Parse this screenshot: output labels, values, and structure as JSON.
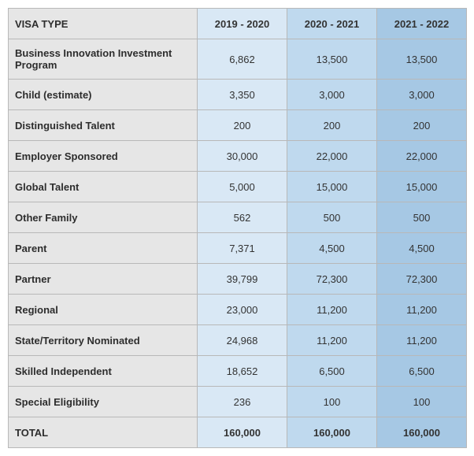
{
  "table": {
    "type": "table",
    "header_label": "VISA TYPE",
    "columns": [
      "2019 - 2020",
      "2020 - 2021",
      "2021 - 2022"
    ],
    "column_bg_colors": [
      "#d9e8f5",
      "#bfd9ee",
      "#a6c8e4"
    ],
    "first_col_bg": "#e6e6e6",
    "border_color": "#b8b8b8",
    "font_family": "Segoe UI",
    "body_fontsize": 13,
    "rows": [
      {
        "label": "Business Innovation Investment Program",
        "values": [
          "6,862",
          "13,500",
          "13,500"
        ]
      },
      {
        "label": "Child (estimate)",
        "values": [
          "3,350",
          "3,000",
          "3,000"
        ]
      },
      {
        "label": "Distinguished Talent",
        "values": [
          "200",
          "200",
          "200"
        ]
      },
      {
        "label": "Employer Sponsored",
        "values": [
          "30,000",
          "22,000",
          "22,000"
        ]
      },
      {
        "label": "Global Talent",
        "values": [
          "5,000",
          "15,000",
          "15,000"
        ]
      },
      {
        "label": "Other Family",
        "values": [
          "562",
          "500",
          "500"
        ]
      },
      {
        "label": "Parent",
        "values": [
          "7,371",
          "4,500",
          "4,500"
        ]
      },
      {
        "label": "Partner",
        "values": [
          "39,799",
          "72,300",
          "72,300"
        ]
      },
      {
        "label": "Regional",
        "values": [
          "23,000",
          "11,200",
          "11,200"
        ]
      },
      {
        "label": "State/Territory Nominated",
        "values": [
          "24,968",
          "11,200",
          "11,200"
        ]
      },
      {
        "label": "Skilled Independent",
        "values": [
          "18,652",
          "6,500",
          "6,500"
        ]
      },
      {
        "label": "Special Eligibility",
        "values": [
          "236",
          "100",
          "100"
        ]
      }
    ],
    "total": {
      "label": "TOTAL",
      "values": [
        "160,000",
        "160,000",
        "160,000"
      ]
    }
  }
}
